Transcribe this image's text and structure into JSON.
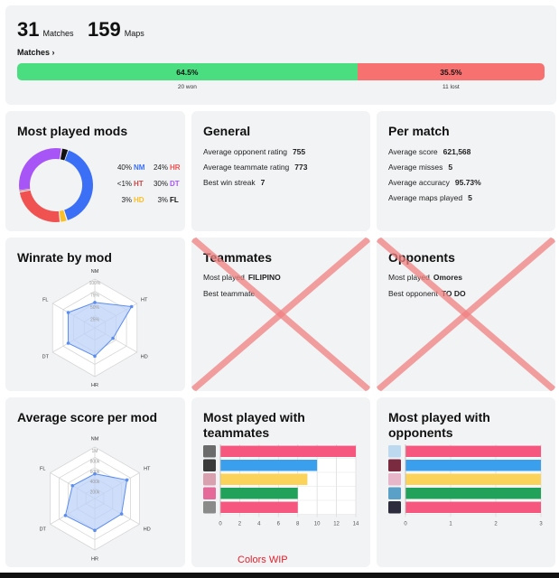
{
  "summary": {
    "matches_count": "31",
    "matches_label": "Matches",
    "maps_count": "159",
    "maps_label": "Maps",
    "matches_link": "Matches ›",
    "win_pct_label": "64.5%",
    "loss_pct_label": "35.5%",
    "won_label": "20 won",
    "lost_label": "11 lost",
    "win_fraction": 0.645,
    "win_color": "#4ade80",
    "loss_color": "#f87171"
  },
  "mods": {
    "title": "Most played mods",
    "items": [
      {
        "pct": "40%",
        "code": "NM",
        "value": 40,
        "color": "#3b6ff6"
      },
      {
        "pct": "24%",
        "code": "HR",
        "value": 24,
        "color": "#f05252"
      },
      {
        "pct": "<1%",
        "code": "HT",
        "value": 0.5,
        "color": "#c24848"
      },
      {
        "pct": "30%",
        "code": "DT",
        "value": 30,
        "color": "#a855f7"
      },
      {
        "pct": "3%",
        "code": "HD",
        "value": 3,
        "color": "#fbbf24"
      },
      {
        "pct": "3%",
        "code": "FL",
        "value": 3,
        "color": "#111111"
      }
    ]
  },
  "general": {
    "title": "General",
    "rows": [
      {
        "label": "Average opponent rating",
        "value": "755"
      },
      {
        "label": "Average teammate rating",
        "value": "773"
      },
      {
        "label": "Best win streak",
        "value": "7"
      }
    ]
  },
  "per_match": {
    "title": "Per match",
    "rows": [
      {
        "label": "Average score",
        "value": "621,568"
      },
      {
        "label": "Average misses",
        "value": "5"
      },
      {
        "label": "Average accuracy",
        "value": "95.73%"
      },
      {
        "label": "Average maps played",
        "value": "5"
      }
    ]
  },
  "winrate": {
    "title": "Winrate by mod",
    "axes": [
      "NM",
      "HT",
      "HD",
      "HR",
      "DT",
      "FL"
    ],
    "ticks": [
      "100%",
      "75%",
      "50%",
      "25%"
    ],
    "values": [
      0.52,
      0.87,
      0.43,
      0.58,
      0.63,
      0.63
    ]
  },
  "teammates": {
    "title": "Teammates",
    "most_played_label": "Most played",
    "most_played_value": "FILIPINO",
    "best_label": "Best teammate",
    "best_value": ""
  },
  "opponents": {
    "title": "Opponents",
    "most_played_label": "Most played",
    "most_played_value": "Omores",
    "best_label": "Best opponent",
    "best_value": "TO DO"
  },
  "avg_score": {
    "title": "Average score per mod",
    "axes": [
      "NM",
      "HT",
      "HD",
      "HR",
      "DT",
      "FL"
    ],
    "ticks": [
      "1M",
      "800k",
      "600k",
      "400k",
      "200k"
    ],
    "values": [
      0.48,
      0.72,
      0.6,
      0.62,
      0.66,
      0.5
    ]
  },
  "with_teammates": {
    "title": "Most played with teammates",
    "x_ticks": [
      "0",
      "2",
      "4",
      "6",
      "8",
      "10",
      "12",
      "14"
    ],
    "x_max": 14,
    "values": [
      14,
      10,
      9,
      8,
      8
    ],
    "colors": [
      "#f5577f",
      "#3aa0ee",
      "#fbd35a",
      "#22a15a",
      "#f5577f"
    ],
    "avatar_colors": [
      "#6b6b6b",
      "#3a3a3a",
      "#d9a0b0",
      "#e56a9a",
      "#8a8a8a"
    ]
  },
  "with_opponents": {
    "title": "Most played with opponents",
    "x_ticks": [
      "0",
      "1",
      "2",
      "3"
    ],
    "x_max": 3,
    "values": [
      3,
      3,
      3,
      3,
      3
    ],
    "colors": [
      "#f5577f",
      "#3aa0ee",
      "#fbd35a",
      "#22a15a",
      "#f5577f"
    ],
    "avatar_colors": [
      "#bcd9ef",
      "#7a2b3f",
      "#e7b7c9",
      "#5ba0c7",
      "#2c2c3c"
    ]
  },
  "footer_note": "Colors WIP",
  "colors": {
    "card_bg": "#f2f3f5",
    "radar_fill": "#bcd2f8",
    "radar_stroke": "#5b8def",
    "cross": "#f08080",
    "note": "#e5202a"
  }
}
